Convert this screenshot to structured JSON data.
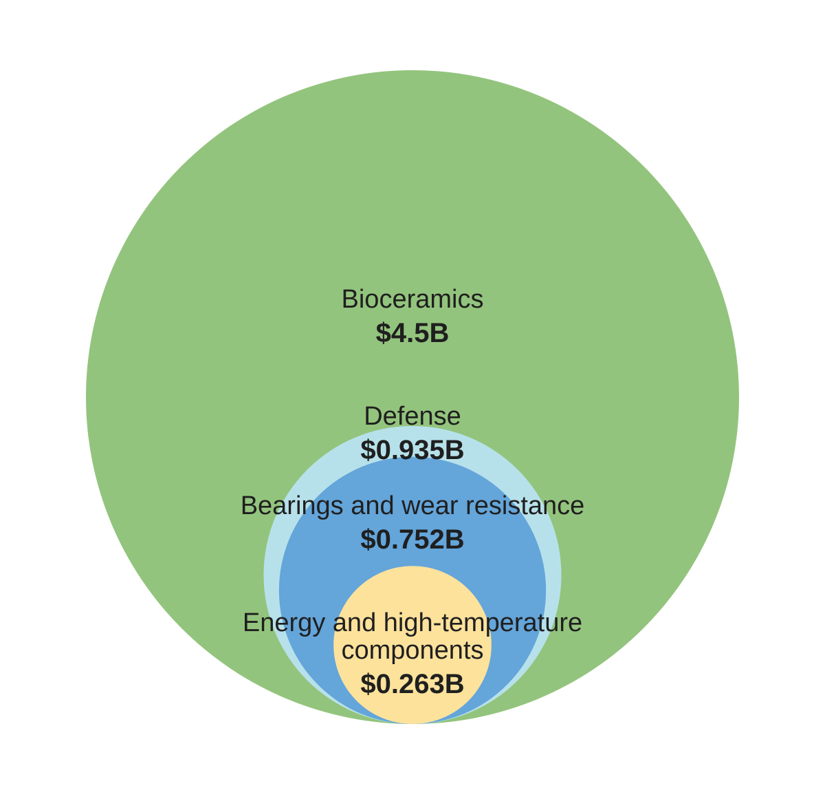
{
  "chart_data": {
    "type": "nested-bubble",
    "series": [
      {
        "name": "Bioceramics",
        "value": 4.5,
        "label": "$4.5B",
        "color": "#93c47d"
      },
      {
        "name": "Defense",
        "value": 0.935,
        "label": "$0.935B",
        "color": "#b7e1ea"
      },
      {
        "name": "Bearings and wear resistance",
        "value": 0.752,
        "label": "$0.752B",
        "color": "#64a5da"
      },
      {
        "name": "Energy and high-temperature components",
        "name_lines": [
          "Energy and high-temperature",
          "components"
        ],
        "value": 0.263,
        "label": "$0.263B",
        "color": "#fde29c"
      }
    ]
  }
}
